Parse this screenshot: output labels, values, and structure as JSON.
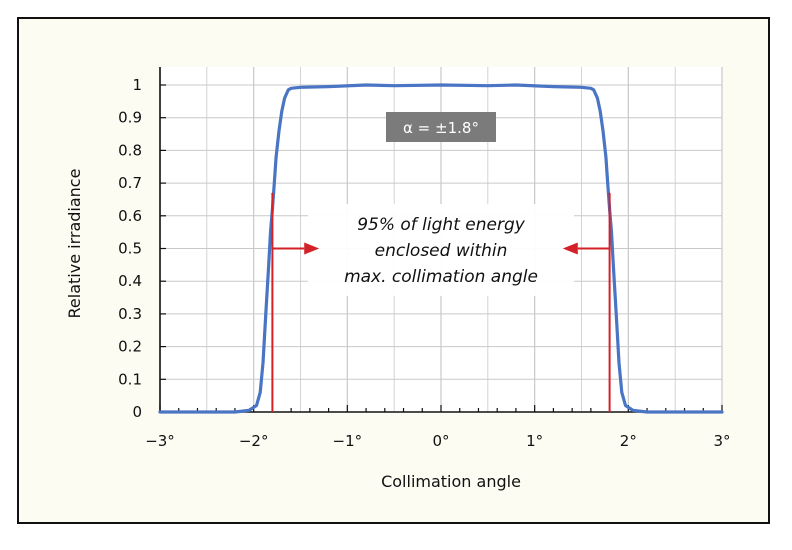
{
  "chart_data": {
    "type": "line",
    "title": "",
    "xlabel": "Collimation angle",
    "ylabel": "Relative irradiance",
    "xlim": [
      -3,
      3
    ],
    "ylim": [
      0,
      1
    ],
    "grid": true,
    "x_ticks": [
      {
        "value": -3,
        "label": "−3°"
      },
      {
        "value": -2,
        "label": "−2°"
      },
      {
        "value": -1,
        "label": "−1°"
      },
      {
        "value": 0,
        "label": "0°"
      },
      {
        "value": 1,
        "label": "1°"
      },
      {
        "value": 2,
        "label": "2°"
      },
      {
        "value": 3,
        "label": "3°"
      }
    ],
    "y_ticks": [
      {
        "value": 0,
        "label": "0"
      },
      {
        "value": 0.1,
        "label": "0.1"
      },
      {
        "value": 0.2,
        "label": "0.2"
      },
      {
        "value": 0.3,
        "label": "0.3"
      },
      {
        "value": 0.4,
        "label": "0.4"
      },
      {
        "value": 0.5,
        "label": "0.5"
      },
      {
        "value": 0.6,
        "label": "0.6"
      },
      {
        "value": 0.7,
        "label": "0.7"
      },
      {
        "value": 0.8,
        "label": "0.8"
      },
      {
        "value": 0.9,
        "label": "0.9"
      },
      {
        "value": 1,
        "label": "1"
      }
    ],
    "series": [
      {
        "color": "#4a74c4",
        "x": [
          -3,
          -2.5,
          -2.2,
          -2.05,
          -1.97,
          -1.93,
          -1.9,
          -1.87,
          -1.84,
          -1.82,
          -1.8,
          -1.78,
          -1.76,
          -1.73,
          -1.7,
          -1.67,
          -1.63,
          -1.6,
          -1.5,
          -1.2,
          -0.8,
          -0.5,
          0,
          0.5,
          0.8,
          1.2,
          1.5,
          1.6,
          1.63,
          1.67,
          1.7,
          1.73,
          1.76,
          1.78,
          1.8,
          1.82,
          1.84,
          1.87,
          1.9,
          1.93,
          1.97,
          2.05,
          2.2,
          2.5,
          3
        ],
        "y": [
          0,
          0,
          0,
          0.005,
          0.02,
          0.06,
          0.15,
          0.3,
          0.45,
          0.55,
          0.62,
          0.7,
          0.78,
          0.86,
          0.92,
          0.96,
          0.985,
          0.99,
          0.993,
          0.995,
          1.0,
          0.998,
          1.0,
          0.998,
          1.0,
          0.995,
          0.993,
          0.99,
          0.985,
          0.96,
          0.92,
          0.86,
          0.78,
          0.7,
          0.62,
          0.55,
          0.45,
          0.3,
          0.15,
          0.06,
          0.02,
          0.005,
          0,
          0,
          0
        ]
      }
    ],
    "markers": [
      {
        "x": -1.8,
        "y_top": 0.67,
        "color": "#d42027"
      },
      {
        "x": 1.8,
        "y_top": 0.67,
        "color": "#d42027"
      }
    ],
    "arrows": [
      {
        "from_x": -1.8,
        "to_x": -1.3,
        "y": 0.5,
        "color": "#d42027"
      },
      {
        "from_x": 1.8,
        "to_x": 1.3,
        "y": 0.5,
        "color": "#d42027"
      }
    ],
    "annotations": [
      {
        "lines": [
          "95% of light energy",
          "enclosed within",
          "max. collimation angle"
        ]
      }
    ],
    "badge": {
      "text": "α = ±1.8°",
      "background": "#7b7b7b",
      "color": "#ffffff"
    },
    "colors": {
      "frame_background": "#fdfcf3",
      "grid": "#c9c9c9",
      "axis": "#111111"
    }
  }
}
